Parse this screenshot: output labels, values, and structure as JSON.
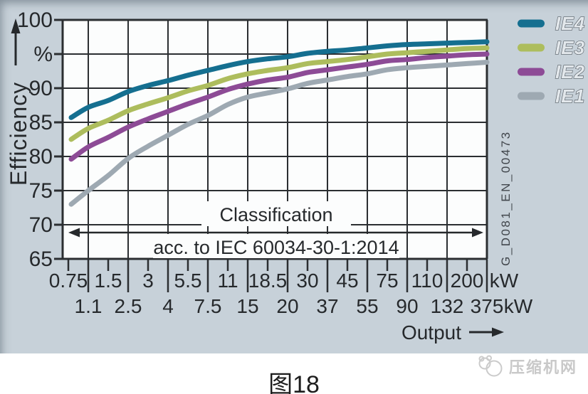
{
  "figure": {
    "caption": "图18",
    "watermark_text": "压缩机网",
    "side_code": "G_D081_EN_00473"
  },
  "chart_data": {
    "type": "line",
    "title": "",
    "ylabel": "Efficiency",
    "y_unit_label": "%",
    "xlabel": "Output",
    "x_unit": "kW",
    "ylim": [
      65,
      100
    ],
    "grid": true,
    "legend_position": "top-right-outside",
    "y_ticks": [
      100,
      95,
      90,
      85,
      80,
      75,
      70,
      65
    ],
    "y_tick_labels": [
      "100",
      "%",
      "90",
      "85",
      "80",
      "75",
      "70",
      "65"
    ],
    "x_categories_kw": [
      0.75,
      1.1,
      1.5,
      2.5,
      3,
      4,
      5.5,
      7.5,
      11,
      15,
      18.5,
      20,
      30,
      37,
      45,
      55,
      75,
      90,
      110,
      132,
      200,
      375
    ],
    "x_tick_row1": [
      "0.75",
      "1.5",
      "3",
      "5.5",
      "11",
      "18.5",
      "30",
      "45",
      "75",
      "110",
      "200"
    ],
    "x_tick_row2": [
      "1.1",
      "2.5",
      "4",
      "7.5",
      "15",
      "20",
      "37",
      "55",
      "90",
      "132",
      "375"
    ],
    "annotation": {
      "line1": "Classification",
      "line2": "acc. to IEC 60034-30-1:2014"
    },
    "series": [
      {
        "name": "IE4",
        "color": "#156f90",
        "values": [
          85.7,
          87.2,
          88.2,
          89.5,
          90.4,
          91.1,
          91.9,
          92.6,
          93.3,
          93.9,
          94.3,
          94.6,
          95.1,
          95.4,
          95.6,
          95.9,
          96.2,
          96.4,
          96.5,
          96.6,
          96.7,
          96.8
        ]
      },
      {
        "name": "IE3",
        "color": "#adbd5d",
        "values": [
          82.5,
          84.1,
          85.3,
          86.7,
          87.7,
          88.6,
          89.6,
          90.4,
          91.4,
          92.1,
          92.6,
          93.0,
          93.6,
          93.9,
          94.2,
          94.6,
          95.0,
          95.2,
          95.4,
          95.6,
          95.8,
          95.9
        ]
      },
      {
        "name": "IE2",
        "color": "#8d4b96",
        "values": [
          79.6,
          81.4,
          82.8,
          84.3,
          85.5,
          86.6,
          87.7,
          88.7,
          89.8,
          90.6,
          91.2,
          91.6,
          92.3,
          92.7,
          93.1,
          93.5,
          94.0,
          94.2,
          94.5,
          94.7,
          94.9,
          95.0
        ]
      },
      {
        "name": "IE1",
        "color": "#9ea9b2",
        "values": [
          73.0,
          75.0,
          77.2,
          79.7,
          81.5,
          83.1,
          84.7,
          86.0,
          87.6,
          88.7,
          89.3,
          89.9,
          90.7,
          91.2,
          91.7,
          92.1,
          92.7,
          93.0,
          93.2,
          93.4,
          93.6,
          93.8
        ]
      }
    ]
  },
  "colors": {
    "panel_bg": "#c7d1d9",
    "plot_bg": "#fcfdfd",
    "grid_line": "#2b2e31",
    "text": "#26292c",
    "legend_label_fill": "#e3e8ec",
    "legend_label_stroke": "#555c63",
    "watermark": "#c9c9c9"
  }
}
